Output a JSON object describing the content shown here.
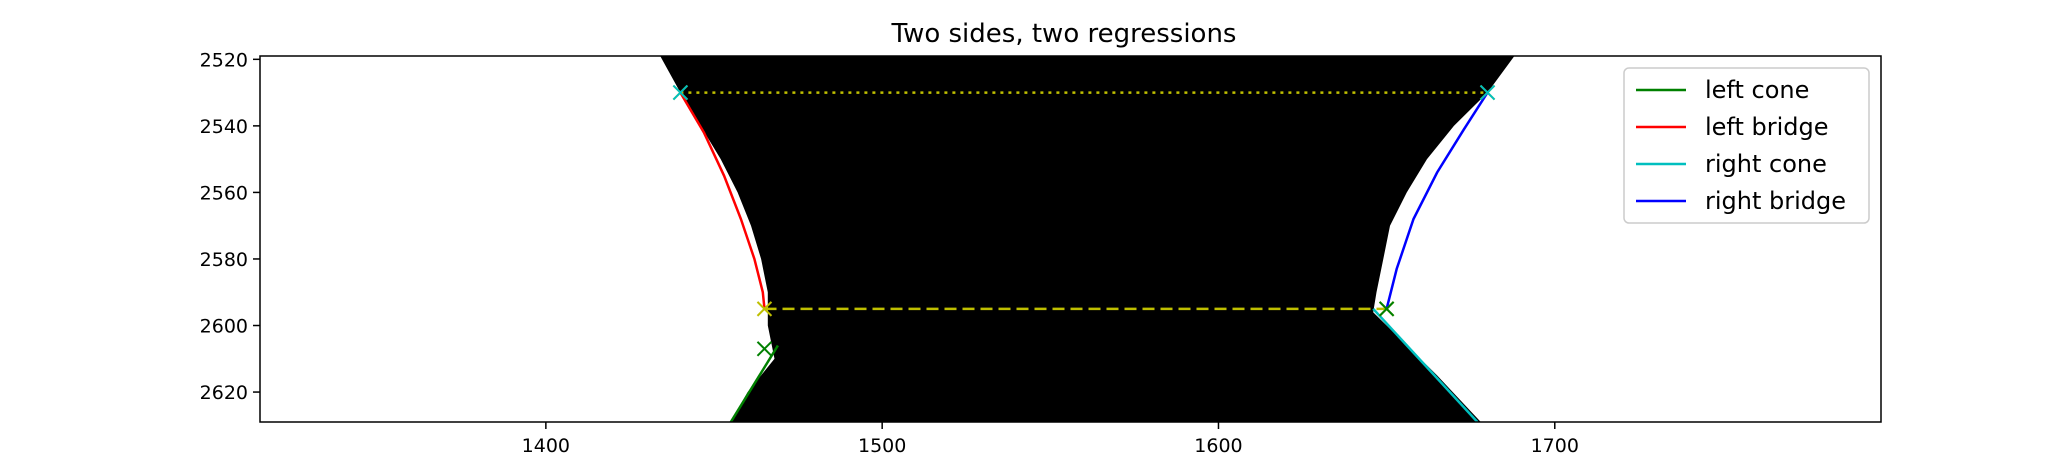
{
  "chart_data": {
    "type": "line",
    "title": "Two sides, two regressions",
    "xlabel": "",
    "ylabel": "",
    "xlim": [
      1315,
      1797
    ],
    "ylim": [
      2629,
      2519
    ],
    "y_inverted": true,
    "x_ticks": [
      1400,
      1500,
      1600,
      1700
    ],
    "x_tick_labels": [
      "1400",
      "1500",
      "1600",
      "1700"
    ],
    "y_ticks": [
      2520,
      2540,
      2560,
      2580,
      2600,
      2620
    ],
    "y_tick_labels": [
      "2520",
      "2540",
      "2560",
      "2580",
      "2600",
      "2620"
    ],
    "legend_position": "upper right",
    "background_image": {
      "description": "binary mask: black region between left and right boundary, white outside",
      "left_boundary": [
        [
          1434,
          2519
        ],
        [
          1440,
          2530
        ],
        [
          1446,
          2540
        ],
        [
          1452,
          2550
        ],
        [
          1457,
          2560
        ],
        [
          1461,
          2570
        ],
        [
          1464,
          2580
        ],
        [
          1466,
          2590
        ],
        [
          1466,
          2600
        ],
        [
          1468,
          2610
        ],
        [
          1460,
          2620
        ],
        [
          1455,
          2629
        ]
      ],
      "right_boundary": [
        [
          1688,
          2519
        ],
        [
          1680,
          2530
        ],
        [
          1670,
          2540
        ],
        [
          1662,
          2550
        ],
        [
          1656,
          2560
        ],
        [
          1651,
          2570
        ],
        [
          1649,
          2580
        ],
        [
          1647,
          2590
        ],
        [
          1646,
          2596
        ],
        [
          1655,
          2605
        ],
        [
          1665,
          2615
        ],
        [
          1678,
          2629
        ]
      ]
    },
    "series": [
      {
        "name": "left cone",
        "color": "#008000",
        "style": "solid",
        "x": [
          1455,
          1469
        ],
        "y": [
          2629,
          2606
        ]
      },
      {
        "name": "left bridge",
        "color": "#ff0000",
        "style": "solid",
        "x": [
          1440,
          1447,
          1453,
          1458,
          1462,
          1464.5,
          1465
        ],
        "y": [
          2530,
          2542,
          2555,
          2568,
          2580,
          2590,
          2595
        ]
      },
      {
        "name": "right cone",
        "color": "#00bfbf",
        "style": "solid",
        "x": [
          1646,
          1677
        ],
        "y": [
          2595,
          2629
        ]
      },
      {
        "name": "right bridge",
        "color": "#0000ff",
        "style": "solid",
        "x": [
          1650,
          1653,
          1658,
          1665,
          1673,
          1680
        ],
        "y": [
          2595,
          2583,
          2568,
          2554,
          2541,
          2530
        ]
      }
    ],
    "reference_lines": [
      {
        "color": "#bfbf00",
        "style": "dotted",
        "x": [
          1440,
          1680
        ],
        "y": [
          2530,
          2530
        ]
      },
      {
        "color": "#bfbf00",
        "style": "dashed",
        "x": [
          1465,
          1650
        ],
        "y": [
          2595,
          2595
        ]
      }
    ],
    "markers": [
      {
        "x": 1440,
        "y": 2530,
        "color": "#bfbf00",
        "symbol": "x"
      },
      {
        "x": 1440,
        "y": 2530,
        "color": "#00bfbf",
        "symbol": "x"
      },
      {
        "x": 1680,
        "y": 2530,
        "color": "#bfbf00",
        "symbol": "x"
      },
      {
        "x": 1680,
        "y": 2530,
        "color": "#00bfbf",
        "symbol": "x"
      },
      {
        "x": 1465,
        "y": 2595,
        "color": "#bfbf00",
        "symbol": "x"
      },
      {
        "x": 1465,
        "y": 2607,
        "color": "#008000",
        "symbol": "x"
      },
      {
        "x": 1650,
        "y": 2595,
        "color": "#bfbf00",
        "symbol": "x"
      },
      {
        "x": 1650,
        "y": 2595,
        "color": "#008000",
        "symbol": "x"
      }
    ]
  }
}
